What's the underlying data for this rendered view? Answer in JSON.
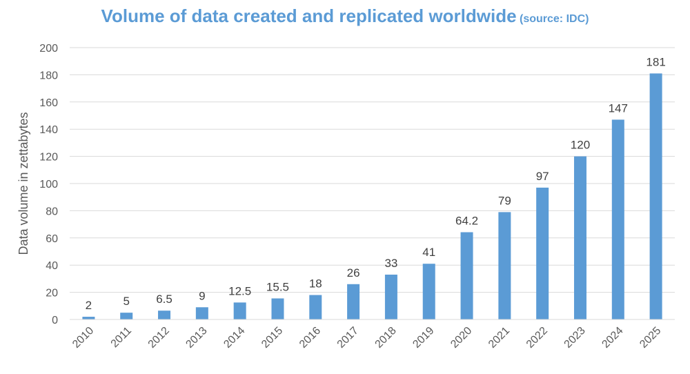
{
  "chart_data": {
    "type": "bar",
    "title": "Volume of data created and replicated worldwide",
    "subtitle": "(source: IDC)",
    "xlabel": "",
    "ylabel": "Data volume in zettabytes",
    "categories": [
      "2010",
      "2011",
      "2012",
      "2013",
      "2014",
      "2015",
      "2016",
      "2017",
      "2018",
      "2019",
      "2020",
      "2021",
      "2022",
      "2023",
      "2024",
      "2025"
    ],
    "values": [
      2,
      5,
      6.5,
      9,
      12.5,
      15.5,
      18,
      26,
      33,
      41,
      64.2,
      79,
      97,
      120,
      147,
      181
    ],
    "value_labels": [
      "2",
      "5",
      "6.5",
      "9",
      "12.5",
      "15.5",
      "18",
      "26",
      "33",
      "41",
      "64.2",
      "79",
      "97",
      "120",
      "147",
      "181"
    ],
    "ylim": [
      0,
      200
    ],
    "yticks": [
      0,
      20,
      40,
      60,
      80,
      100,
      120,
      140,
      160,
      180,
      200
    ],
    "grid": true,
    "legend": "none",
    "bar_color": "#5b9bd5",
    "title_color": "#5b9bd5"
  }
}
